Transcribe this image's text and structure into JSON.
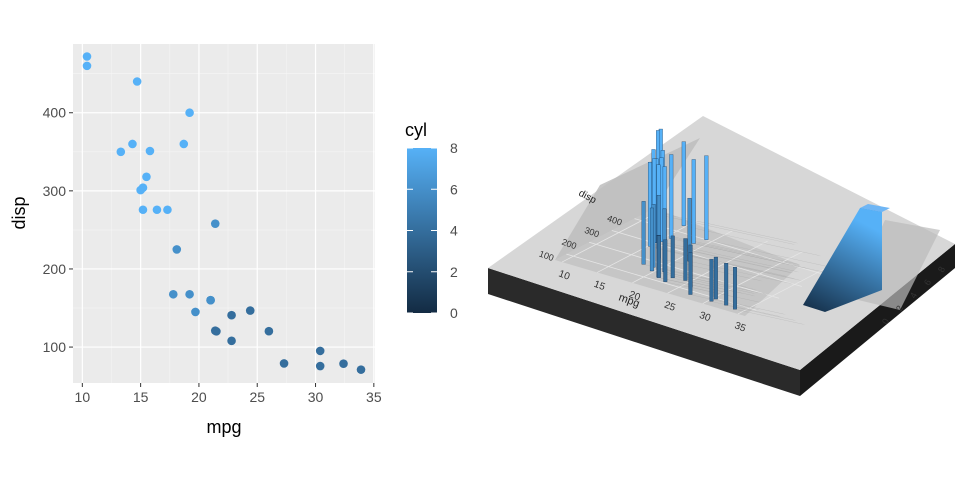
{
  "chart_data": [
    {
      "type": "scatter",
      "xlabel": "mpg",
      "ylabel": "disp",
      "xlim": [
        9.2,
        35.1
      ],
      "ylim": [
        54,
        488
      ],
      "x_ticks": [
        10,
        15,
        20,
        25,
        30,
        35
      ],
      "y_ticks": [
        100,
        200,
        300,
        400
      ],
      "grid": true,
      "color_by": "cyl",
      "legend": {
        "title": "cyl",
        "position": "right",
        "ticks": [
          0,
          2,
          4,
          6,
          8
        ],
        "range": [
          0,
          8
        ],
        "low_color": "#132B43",
        "high_color": "#56B1F7"
      },
      "points": [
        {
          "x": 21.0,
          "y": 160.0,
          "cyl": 6
        },
        {
          "x": 21.0,
          "y": 160.0,
          "cyl": 6
        },
        {
          "x": 22.8,
          "y": 108.0,
          "cyl": 4
        },
        {
          "x": 21.4,
          "y": 258.0,
          "cyl": 6
        },
        {
          "x": 18.7,
          "y": 360.0,
          "cyl": 8
        },
        {
          "x": 18.1,
          "y": 225.0,
          "cyl": 6
        },
        {
          "x": 14.3,
          "y": 360.0,
          "cyl": 8
        },
        {
          "x": 24.4,
          "y": 146.7,
          "cyl": 4
        },
        {
          "x": 22.8,
          "y": 140.8,
          "cyl": 4
        },
        {
          "x": 19.2,
          "y": 167.6,
          "cyl": 6
        },
        {
          "x": 17.8,
          "y": 167.6,
          "cyl": 6
        },
        {
          "x": 16.4,
          "y": 275.8,
          "cyl": 8
        },
        {
          "x": 17.3,
          "y": 275.8,
          "cyl": 8
        },
        {
          "x": 15.2,
          "y": 275.8,
          "cyl": 8
        },
        {
          "x": 10.4,
          "y": 472.0,
          "cyl": 8
        },
        {
          "x": 10.4,
          "y": 460.0,
          "cyl": 8
        },
        {
          "x": 14.7,
          "y": 440.0,
          "cyl": 8
        },
        {
          "x": 32.4,
          "y": 78.7,
          "cyl": 4
        },
        {
          "x": 30.4,
          "y": 75.7,
          "cyl": 4
        },
        {
          "x": 33.9,
          "y": 71.1,
          "cyl": 4
        },
        {
          "x": 21.5,
          "y": 120.1,
          "cyl": 4
        },
        {
          "x": 15.5,
          "y": 318.0,
          "cyl": 8
        },
        {
          "x": 15.2,
          "y": 304.0,
          "cyl": 8
        },
        {
          "x": 13.3,
          "y": 350.0,
          "cyl": 8
        },
        {
          "x": 19.2,
          "y": 400.0,
          "cyl": 8
        },
        {
          "x": 27.3,
          "y": 79.0,
          "cyl": 4
        },
        {
          "x": 26.0,
          "y": 120.3,
          "cyl": 4
        },
        {
          "x": 30.4,
          "y": 95.1,
          "cyl": 4
        },
        {
          "x": 15.8,
          "y": 351.0,
          "cyl": 8
        },
        {
          "x": 19.7,
          "y": 145.0,
          "cyl": 6
        },
        {
          "x": 15.0,
          "y": 301.0,
          "cyl": 8
        },
        {
          "x": 21.4,
          "y": 121.0,
          "cyl": 4
        }
      ]
    },
    {
      "type": "3d-bar",
      "xlabel": "mpg",
      "ylabel": "disp",
      "x_ticks": [
        10,
        15,
        20,
        25,
        30,
        35
      ],
      "y_ticks": [
        100,
        200,
        300,
        400
      ],
      "legend_ticks": [
        0,
        2,
        4,
        6,
        8
      ],
      "note": "same data rendered as 3D columns with height = cyl"
    }
  ]
}
